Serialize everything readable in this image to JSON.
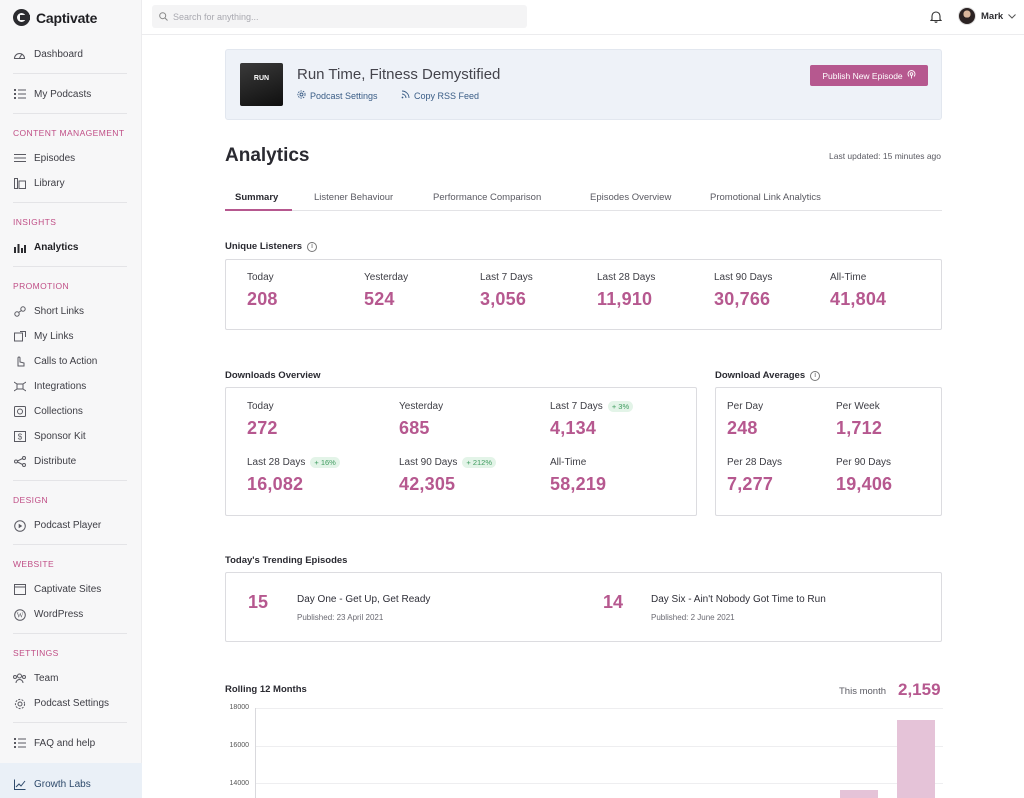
{
  "app": {
    "name": "Captivate"
  },
  "search": {
    "placeholder": "Search for anything..."
  },
  "user": {
    "name": "Mark"
  },
  "sidebar": {
    "dashboard": "Dashboard",
    "my_podcasts": "My Podcasts",
    "content_management": "CONTENT MANAGEMENT",
    "episodes": "Episodes",
    "library": "Library",
    "insights": "INSIGHTS",
    "analytics": "Analytics",
    "promotion": "PROMOTION",
    "short_links": "Short Links",
    "my_links": "My Links",
    "calls_to_action": "Calls to Action",
    "integrations": "Integrations",
    "collections": "Collections",
    "sponsor_kit": "Sponsor Kit",
    "distribute": "Distribute",
    "design": "DESIGN",
    "podcast_player": "Podcast Player",
    "website": "WEBSITE",
    "captivate_sites": "Captivate Sites",
    "wordpress": "WordPress",
    "settings": "SETTINGS",
    "team": "Team",
    "podcast_settings": "Podcast Settings",
    "faq": "FAQ and help",
    "growth_labs": "Growth Labs"
  },
  "podcast": {
    "title": "Run Time, Fitness Demystified",
    "cover_text": "RUN",
    "settings_link": "Podcast Settings",
    "rss_link": "Copy RSS Feed",
    "publish_button": "Publish New Episode"
  },
  "page": {
    "title": "Analytics",
    "last_updated": "Last updated: 15 minutes ago"
  },
  "tabs": [
    "Summary",
    "Listener Behaviour",
    "Performance Comparison",
    "Episodes Overview",
    "Promotional Link Analytics"
  ],
  "unique_listeners": {
    "title": "Unique Listeners",
    "stats": [
      {
        "label": "Today",
        "value": "208"
      },
      {
        "label": "Yesterday",
        "value": "524"
      },
      {
        "label": "Last 7 Days",
        "value": "3,056"
      },
      {
        "label": "Last 28 Days",
        "value": "11,910"
      },
      {
        "label": "Last 90 Days",
        "value": "30,766"
      },
      {
        "label": "All-Time",
        "value": "41,804"
      }
    ]
  },
  "downloads_overview": {
    "title": "Downloads Overview",
    "stats": [
      {
        "label": "Today",
        "value": "272",
        "badge": ""
      },
      {
        "label": "Yesterday",
        "value": "685",
        "badge": ""
      },
      {
        "label": "Last 7 Days",
        "value": "4,134",
        "badge": "+ 3%"
      },
      {
        "label": "Last 28 Days",
        "value": "16,082",
        "badge": "+ 16%"
      },
      {
        "label": "Last 90 Days",
        "value": "42,305",
        "badge": "+ 212%"
      },
      {
        "label": "All-Time",
        "value": "58,219",
        "badge": ""
      }
    ]
  },
  "download_averages": {
    "title": "Download Averages",
    "stats": [
      {
        "label": "Per Day",
        "value": "248"
      },
      {
        "label": "Per Week",
        "value": "1,712"
      },
      {
        "label": "Per 28 Days",
        "value": "7,277"
      },
      {
        "label": "Per 90 Days",
        "value": "19,406"
      }
    ]
  },
  "trending": {
    "title": "Today's Trending Episodes",
    "episodes": [
      {
        "count": "15",
        "title": "Day One - Get Up, Get Ready",
        "published": "Published: 23 April 2021"
      },
      {
        "count": "14",
        "title": "Day Six - Ain't Nobody Got Time to Run",
        "published": "Published: 2 June 2021"
      }
    ]
  },
  "rolling": {
    "title": "Rolling 12 Months",
    "this_month_label": "This month",
    "this_month_value": "2,159"
  },
  "chart_data": {
    "type": "bar",
    "title": "Rolling 12 Months",
    "yticks": [
      "18000",
      "16000",
      "14000"
    ],
    "ylim": [
      13200,
      18000
    ],
    "values": [
      null,
      null,
      null,
      null,
      null,
      null,
      null,
      null,
      null,
      null,
      13650,
      17350
    ],
    "grid": true
  },
  "colors": {
    "accent": "#b6588f",
    "bar": "#e5c3d8",
    "banner": "#eef2f8"
  }
}
